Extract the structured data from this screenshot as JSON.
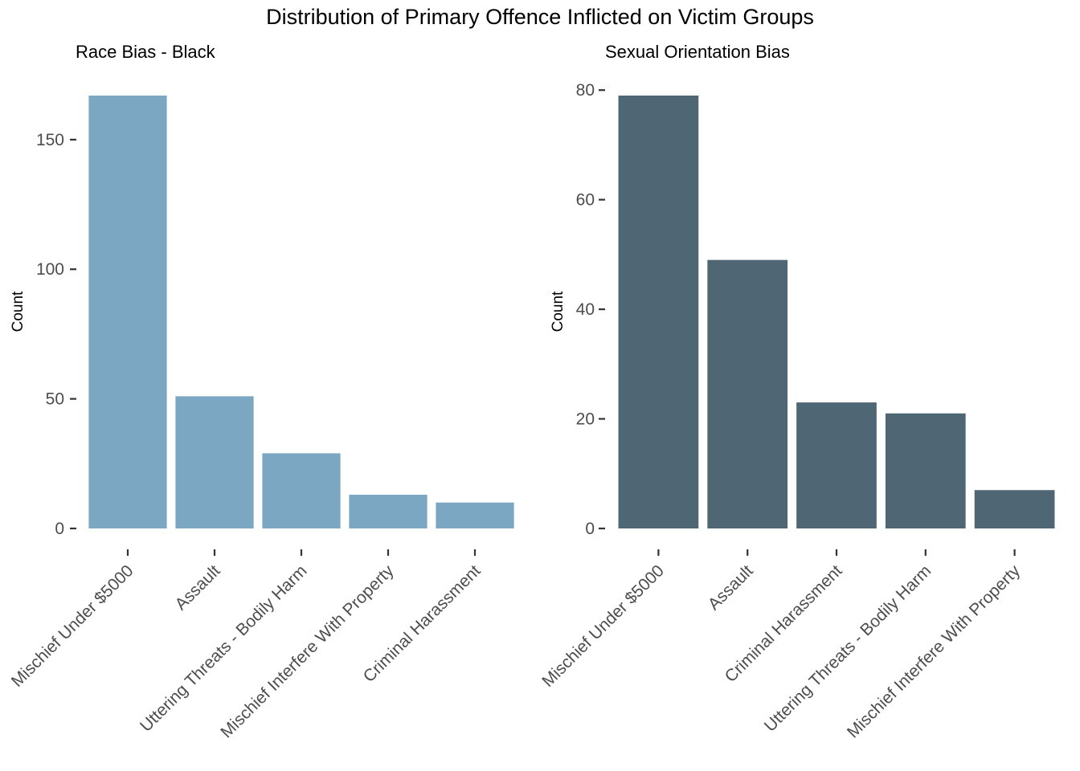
{
  "title": "Distribution of Primary Offence Inflicted on Victim Groups",
  "chart_data": [
    {
      "type": "bar",
      "title": "Race Bias - Black",
      "xlabel": "",
      "ylabel": "Count",
      "color": "#7ba7c2",
      "categories": [
        "Mischief Under $5000",
        "Assault",
        "Uttering Threats - Bodily Harm",
        "Mischief Interfere With Property",
        "Criminal Harassment"
      ],
      "values": [
        167,
        51,
        29,
        13,
        10
      ],
      "ylim": [
        0,
        167
      ],
      "yticks": [
        0,
        50,
        100,
        150
      ],
      "grid": false,
      "legend": "none"
    },
    {
      "type": "bar",
      "title": "Sexual Orientation Bias",
      "xlabel": "",
      "ylabel": "Count",
      "color": "#4f6675",
      "categories": [
        "Mischief Under $5000",
        "Assault",
        "Criminal Harassment",
        "Uttering Threats - Bodily Harm",
        "Mischief Interfere With Property"
      ],
      "values": [
        79,
        49,
        23,
        21,
        7
      ],
      "ylim": [
        0,
        79
      ],
      "yticks": [
        0,
        20,
        40,
        60,
        80
      ],
      "grid": false,
      "legend": "none"
    }
  ]
}
